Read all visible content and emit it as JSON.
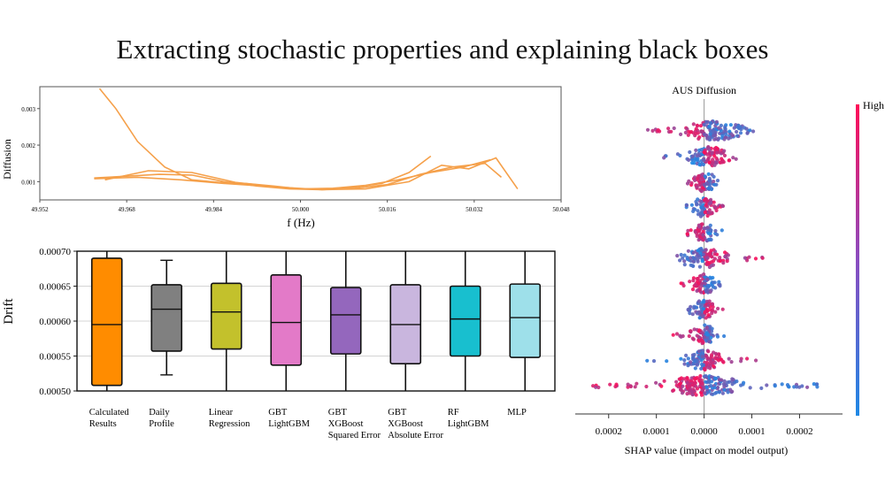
{
  "title": "Extracting stochastic properties and explaining black boxes",
  "chart_data": [
    {
      "id": "diffusion",
      "type": "line",
      "xlabel": "f (Hz)",
      "ylabel": "Diffusion",
      "xlim": [
        49.952,
        50.048
      ],
      "ylim": [
        0.0005,
        0.0036
      ],
      "xticks": [
        "49.952",
        "49.968",
        "49.984",
        "50.000",
        "50.016",
        "50.032",
        "50.048"
      ],
      "yticks": [
        "0.003",
        "0.002",
        "0.001"
      ],
      "ytick_values": [
        0.003,
        0.002,
        0.001
      ],
      "color": "#f5a04a",
      "series": [
        {
          "x": [
            49.963,
            49.966,
            49.97,
            49.975,
            49.98,
            49.985,
            49.99,
            49.995,
            50.0,
            50.005,
            50.01,
            50.015,
            50.02,
            50.024
          ],
          "y": [
            0.00355,
            0.003,
            0.0021,
            0.0014,
            0.00105,
            0.00098,
            0.00095,
            0.00088,
            0.0008,
            0.0008,
            0.00085,
            0.00095,
            0.00125,
            0.0017
          ]
        },
        {
          "x": [
            49.962,
            49.968,
            49.974,
            49.98,
            49.986,
            49.992,
            49.998,
            50.004,
            50.01,
            50.016,
            50.022,
            50.028,
            50.034,
            50.037
          ],
          "y": [
            0.0011,
            0.00115,
            0.0012,
            0.00118,
            0.001,
            0.00088,
            0.0008,
            0.00078,
            0.00082,
            0.00092,
            0.0012,
            0.0014,
            0.0015,
            0.00112
          ]
        },
        {
          "x": [
            49.962,
            49.97,
            49.978,
            49.986,
            49.994,
            50.0,
            50.006,
            50.012,
            50.018,
            50.024,
            50.03,
            50.035
          ],
          "y": [
            0.00108,
            0.00112,
            0.00105,
            0.00095,
            0.00087,
            0.0008,
            0.00082,
            0.0009,
            0.00105,
            0.00125,
            0.0014,
            0.0016
          ]
        },
        {
          "x": [
            49.964,
            49.972,
            49.98,
            49.988,
            49.996,
            50.004,
            50.012,
            50.02,
            50.026,
            50.031,
            50.036,
            50.04
          ],
          "y": [
            0.00105,
            0.0013,
            0.00125,
            0.00098,
            0.00085,
            0.00078,
            0.0008,
            0.001,
            0.00145,
            0.00135,
            0.00165,
            0.0008
          ]
        }
      ]
    },
    {
      "id": "drift",
      "type": "box",
      "ylabel": "Drift",
      "ylim": [
        0.0005,
        0.0007
      ],
      "yticks": [
        "0.00070",
        "0.00065",
        "0.00060",
        "0.00055",
        "0.00050"
      ],
      "ytick_values": [
        0.0007,
        0.00065,
        0.0006,
        0.00055,
        0.0005
      ],
      "grid": true,
      "boxes": [
        {
          "label": [
            "Calculated",
            "Results"
          ],
          "color": "#ff8c00",
          "whislo": 0.0005,
          "q1": 0.000508,
          "med": 0.000595,
          "q3": 0.00069,
          "whishi": 0.0007
        },
        {
          "label": [
            "Daily",
            "Profile"
          ],
          "color": "#808080",
          "whislo": 0.000523,
          "q1": 0.000557,
          "med": 0.000617,
          "q3": 0.000652,
          "whishi": 0.000687
        },
        {
          "label": [
            "Linear",
            "Regression"
          ],
          "color": "#c3c12c",
          "whislo": 0.0005,
          "q1": 0.00056,
          "med": 0.000613,
          "q3": 0.000654,
          "whishi": 0.0007
        },
        {
          "label": [
            "GBT",
            "LightGBM"
          ],
          "color": "#e37ac8",
          "whislo": 0.0005,
          "q1": 0.000537,
          "med": 0.000598,
          "q3": 0.000666,
          "whishi": 0.0007
        },
        {
          "label": [
            "GBT",
            "XGBoost",
            "Squared Error"
          ],
          "color": "#9467bd",
          "whislo": 0.0005,
          "q1": 0.000553,
          "med": 0.000609,
          "q3": 0.000648,
          "whishi": 0.0007
        },
        {
          "label": [
            "GBT",
            "XGBoost",
            "Absolute Error"
          ],
          "color": "#c9b6de",
          "whislo": 0.0005,
          "q1": 0.000539,
          "med": 0.000595,
          "q3": 0.000652,
          "whishi": 0.0007
        },
        {
          "label": [
            "RF",
            "LightGBM"
          ],
          "color": "#18bfcf",
          "whislo": 0.0005,
          "q1": 0.00055,
          "med": 0.000603,
          "q3": 0.00065,
          "whishi": 0.0007
        },
        {
          "label": [
            "MLP"
          ],
          "color": "#9ee0ea",
          "whislo": 0.0005,
          "q1": 0.000548,
          "med": 0.000605,
          "q3": 0.000653,
          "whishi": 0.0007
        }
      ]
    },
    {
      "id": "shap",
      "type": "scatter",
      "title": "AUS Diffusion",
      "xlabel": "SHAP value (impact on model output)",
      "xlim": [
        -0.00027,
        0.00029
      ],
      "xticks": [
        "0.0002",
        "0.0001",
        "0.0000",
        "0.0001",
        "0.0002"
      ],
      "xtick_values": [
        -0.0002,
        -0.0001,
        0,
        0.0001,
        0.0002
      ],
      "colorbar_label": "High",
      "colors": {
        "high": "#ff0d57",
        "low": "#1e88e5"
      },
      "rows": [
        {
          "range": [
            -0.00012,
            0.00011
          ],
          "peak": 2e-05,
          "spread": 4.5e-05,
          "n": 140
        },
        {
          "range": [
            -9e-05,
            7e-05
          ],
          "peak": 1e-05,
          "spread": 3.5e-05,
          "n": 110
        },
        {
          "range": [
            -5e-05,
            4e-05
          ],
          "peak": 0.0,
          "spread": 2e-05,
          "n": 70
        },
        {
          "range": [
            -4e-05,
            4e-05
          ],
          "peak": 0.0,
          "spread": 2e-05,
          "n": 70
        },
        {
          "range": [
            -4e-05,
            4e-05
          ],
          "peak": 0.0,
          "spread": 1.8e-05,
          "n": 70
        },
        {
          "range": [
            -6e-05,
            0.00013
          ],
          "peak": 0.0,
          "spread": 4e-05,
          "n": 110
        },
        {
          "range": [
            -5e-05,
            4e-05
          ],
          "peak": 0.0,
          "spread": 2e-05,
          "n": 80
        },
        {
          "range": [
            -4e-05,
            4e-05
          ],
          "peak": 0.0,
          "spread": 2e-05,
          "n": 70
        },
        {
          "range": [
            -7e-05,
            5e-05
          ],
          "peak": 0.0,
          "spread": 2e-05,
          "n": 80
        },
        {
          "range": [
            -0.00013,
            0.00011
          ],
          "peak": 0.0,
          "spread": 3e-05,
          "n": 110
        },
        {
          "range": [
            -0.00024,
            0.00024
          ],
          "peak": 0.0,
          "spread": 6e-05,
          "n": 200
        }
      ]
    }
  ]
}
